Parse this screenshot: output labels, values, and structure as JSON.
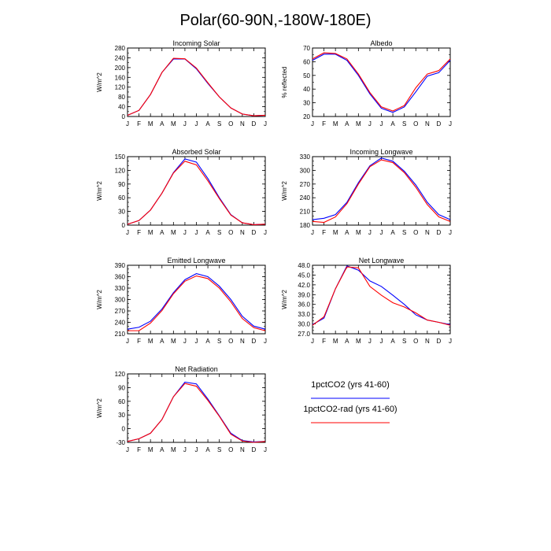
{
  "figure": {
    "title": "Polar(60-90N,-180W-180E)"
  },
  "colors": {
    "1pctCO2 (yrs 41-60)": "#0000ff",
    "1pctCO2-rad (yrs 41-60)": "#ff0000"
  },
  "legend": [
    {
      "label": "1pctCO2 (yrs 41-60)",
      "color": "#0000ff"
    },
    {
      "label": "1pctCO2-rad (yrs 41-60)",
      "color": "#ff0000"
    }
  ],
  "chart_data": [
    {
      "id": "incoming-solar",
      "type": "line",
      "title": "Incoming Solar",
      "ylabel": "W/m^2",
      "x": [
        "J",
        "F",
        "M",
        "A",
        "M",
        "J",
        "J",
        "A",
        "S",
        "O",
        "N",
        "D",
        "J"
      ],
      "ylim": [
        0,
        280
      ],
      "yticks": [
        0,
        40,
        80,
        120,
        160,
        200,
        240,
        280
      ],
      "yminor": 20,
      "ydecimals": 0,
      "series": [
        {
          "name": "1pctCO2 (yrs 41-60)",
          "values": [
            5,
            25,
            90,
            180,
            235,
            235,
            195,
            135,
            80,
            35,
            10,
            3,
            5
          ]
        },
        {
          "name": "1pctCO2-rad (yrs 41-60)",
          "values": [
            5,
            25,
            90,
            180,
            238,
            236,
            198,
            138,
            80,
            35,
            10,
            3,
            5
          ]
        }
      ]
    },
    {
      "id": "albedo",
      "type": "line",
      "title": "Albedo",
      "ylabel": "% reflected",
      "x": [
        "J",
        "F",
        "M",
        "A",
        "M",
        "J",
        "J",
        "A",
        "S",
        "O",
        "N",
        "D",
        "J"
      ],
      "ylim": [
        20,
        70
      ],
      "yticks": [
        20,
        30,
        40,
        50,
        60,
        70
      ],
      "yminor": 5,
      "ydecimals": 0,
      "series": [
        {
          "name": "1pctCO2 (yrs 41-60)",
          "values": [
            61,
            65.5,
            65.5,
            61,
            50,
            36.5,
            26,
            23,
            27,
            38,
            49.5,
            52,
            61
          ]
        },
        {
          "name": "1pctCO2-rad (yrs 41-60)",
          "values": [
            62,
            66.5,
            66,
            62,
            51,
            37.5,
            27,
            24,
            28,
            41,
            51,
            53.5,
            62
          ]
        }
      ]
    },
    {
      "id": "absorbed-solar",
      "type": "line",
      "title": "Absorbed Solar",
      "ylabel": "W/m^2",
      "x": [
        "J",
        "F",
        "M",
        "A",
        "M",
        "J",
        "J",
        "A",
        "S",
        "O",
        "N",
        "D",
        "J"
      ],
      "ylim": [
        0,
        150
      ],
      "yticks": [
        0,
        30,
        60,
        90,
        120,
        150
      ],
      "yminor": 10,
      "ydecimals": 0,
      "series": [
        {
          "name": "1pctCO2 (yrs 41-60)",
          "values": [
            2,
            10,
            33,
            70,
            115,
            145,
            138,
            102,
            60,
            23,
            5,
            1,
            2
          ]
        },
        {
          "name": "1pctCO2-rad (yrs 41-60)",
          "values": [
            2,
            10,
            33,
            70,
            114,
            140,
            132,
            97,
            58,
            22,
            5,
            1,
            2
          ]
        }
      ]
    },
    {
      "id": "incoming-longwave",
      "type": "line",
      "title": "Incoming Longwave",
      "ylabel": "W/m^2",
      "x": [
        "J",
        "F",
        "M",
        "A",
        "M",
        "J",
        "J",
        "A",
        "S",
        "O",
        "N",
        "D",
        "J"
      ],
      "ylim": [
        180,
        330
      ],
      "yticks": [
        180,
        210,
        240,
        270,
        300,
        330
      ],
      "yminor": 10,
      "ydecimals": 0,
      "series": [
        {
          "name": "1pctCO2 (yrs 41-60)",
          "values": [
            192,
            195,
            203,
            230,
            273,
            310,
            327,
            320,
            298,
            268,
            230,
            203,
            192
          ]
        },
        {
          "name": "1pctCO2-rad (yrs 41-60)",
          "values": [
            188,
            186,
            198,
            227,
            270,
            308,
            323,
            317,
            295,
            263,
            225,
            198,
            188
          ]
        }
      ]
    },
    {
      "id": "emitted-longwave",
      "type": "line",
      "title": "Emitted Longwave",
      "ylabel": "W/m^2",
      "x": [
        "J",
        "F",
        "M",
        "A",
        "M",
        "J",
        "J",
        "A",
        "S",
        "O",
        "N",
        "D",
        "J"
      ],
      "ylim": [
        210,
        390
      ],
      "yticks": [
        210,
        240,
        270,
        300,
        330,
        360,
        390
      ],
      "yminor": 10,
      "ydecimals": 0,
      "series": [
        {
          "name": "1pctCO2 (yrs 41-60)",
          "values": [
            222,
            227,
            243,
            275,
            318,
            352,
            368,
            360,
            335,
            300,
            256,
            230,
            222
          ]
        },
        {
          "name": "1pctCO2-rad (yrs 41-60)",
          "values": [
            218,
            218,
            238,
            271,
            315,
            348,
            362,
            355,
            330,
            294,
            250,
            226,
            218
          ]
        }
      ]
    },
    {
      "id": "net-longwave",
      "type": "line",
      "title": "Net Longwave",
      "ylabel": "W/m^2",
      "x": [
        "J",
        "F",
        "M",
        "A",
        "M",
        "J",
        "J",
        "A",
        "S",
        "O",
        "N",
        "D",
        "J"
      ],
      "ylim": [
        27.0,
        48.0
      ],
      "yticks": [
        27,
        30,
        33,
        36,
        39,
        42,
        45,
        48
      ],
      "yminor": 1,
      "ydecimals": 1,
      "series": [
        {
          "name": "1pctCO2 (yrs 41-60)",
          "values": [
            29.8,
            31.8,
            40.8,
            47.8,
            46.5,
            43.2,
            41.5,
            38.8,
            36.0,
            32.8,
            31.2,
            30.5,
            29.8
          ]
        },
        {
          "name": "1pctCO2-rad (yrs 41-60)",
          "values": [
            29.6,
            32.2,
            40.8,
            47.5,
            47.2,
            41.5,
            38.8,
            36.5,
            35.2,
            33.4,
            31.2,
            30.5,
            29.6
          ]
        }
      ]
    },
    {
      "id": "net-radiation",
      "type": "line",
      "title": "Net Radiation",
      "ylabel": "W/m^2",
      "x": [
        "J",
        "F",
        "M",
        "A",
        "M",
        "J",
        "J",
        "A",
        "S",
        "O",
        "N",
        "D",
        "J"
      ],
      "ylim": [
        -30,
        120
      ],
      "yticks": [
        -30,
        0,
        30,
        60,
        90,
        120
      ],
      "yminor": 10,
      "ydecimals": 0,
      "series": [
        {
          "name": "1pctCO2 (yrs 41-60)",
          "values": [
            -28,
            -22,
            -10,
            20,
            70,
            102,
            98,
            65,
            28,
            -10,
            -26,
            -29,
            -28
          ]
        },
        {
          "name": "1pctCO2-rad (yrs 41-60)",
          "values": [
            -28,
            -22,
            -10,
            20,
            70,
            99,
            93,
            62,
            27,
            -12,
            -27,
            -30,
            -28
          ]
        }
      ]
    }
  ]
}
